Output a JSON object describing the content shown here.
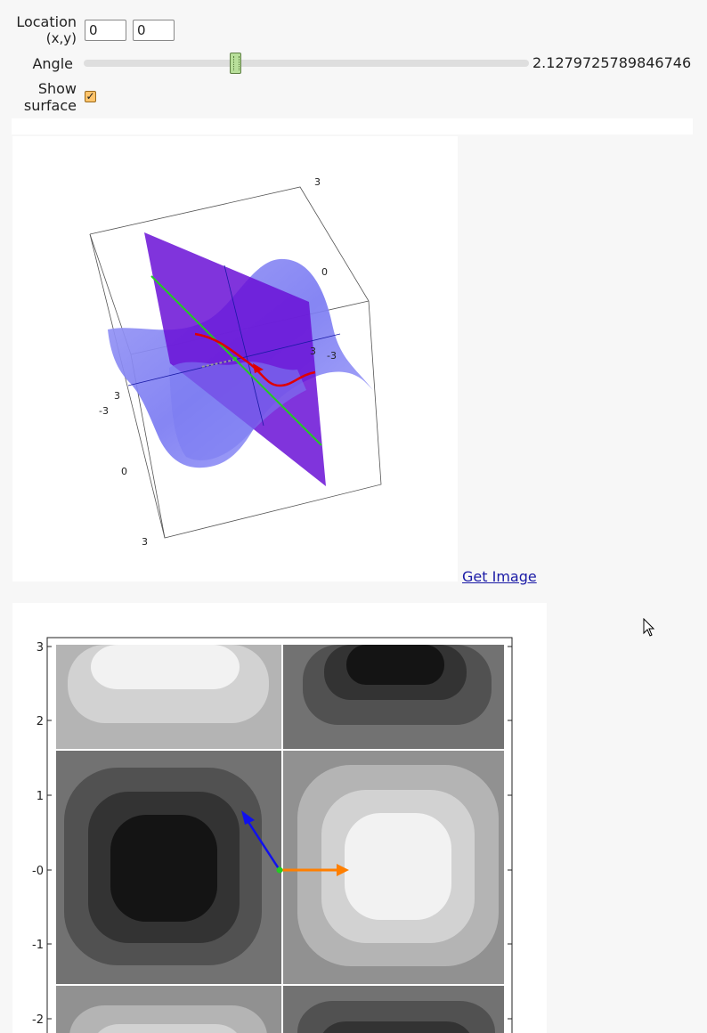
{
  "controls": {
    "location": {
      "label_line1": "Location",
      "label_line2": "(x,y)",
      "x_value": "0",
      "y_value": "0"
    },
    "angle": {
      "label": "Angle",
      "value": "2.1279725789846746",
      "fraction": 0.34
    },
    "show_surface": {
      "label_line1": "Show",
      "label_line2": "surface",
      "checked": true,
      "check_glyph": "✓"
    }
  },
  "plot3d": {
    "tick_labels": [
      "3",
      "0",
      "-3",
      "3",
      "-3",
      "3",
      "-3",
      "0",
      "3"
    ],
    "get_image_label": "Get Image"
  },
  "contour_plot": {
    "y_tick_labels": [
      "3",
      "2",
      "1",
      "-0",
      "-1",
      "-2"
    ]
  },
  "colors": {
    "surface": "#7b7bf2",
    "plane": "#6a10d6",
    "green_line": "#22cc22",
    "red_curve": "#e00000",
    "blue_arrow": "#1010ee",
    "orange_arrow": "#ff7f00",
    "link": "#1a1aa6",
    "slider_thumb": "#b8df9a",
    "checkbox": "#ffc46b"
  },
  "icons": {
    "cursor": "mouse-pointer-icon",
    "checkbox": "checkmark-icon"
  }
}
